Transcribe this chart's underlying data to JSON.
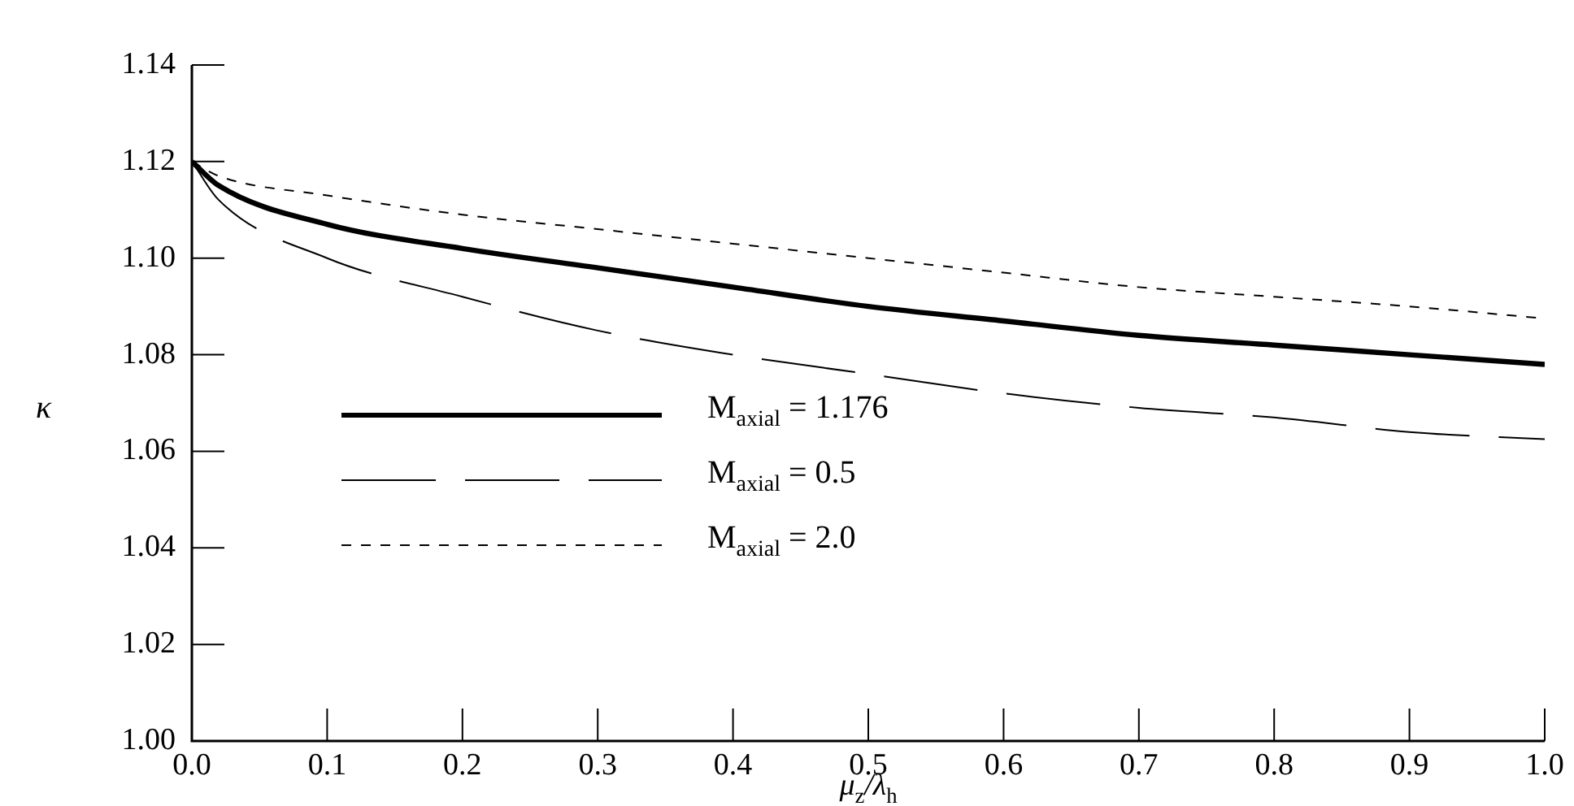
{
  "chart_data": {
    "type": "line",
    "xlabel": "μ$_{z}$/λ$_{h}$",
    "ylabel": "κ",
    "x": [
      0,
      0.02,
      0.1,
      0.2,
      0.3,
      0.4,
      0.5,
      0.6,
      0.7,
      0.8,
      0.9,
      1.0
    ],
    "xlim": [
      0,
      1.0
    ],
    "xticks": [
      {
        "value": 0,
        "label": "0.0"
      },
      0.1,
      0.2,
      0.3,
      0.4,
      0.5,
      0.6,
      0.7,
      0.8,
      0.9,
      {
        "value": 1.0,
        "label": "1.0"
      }
    ],
    "ylim": [
      1.0,
      1.14
    ],
    "yticks": [
      {
        "value": 1.0,
        "label": "1.00"
      },
      1.02,
      1.04,
      1.06,
      1.08,
      {
        "value": 1.1,
        "label": "1.10"
      },
      1.12,
      1.14
    ],
    "grid": false,
    "legend": "bottom left",
    "marker": "none",
    "series": [
      {
        "name": "M$_{axial}$ = 1.176",
        "color": "#000000",
        "line_style": "solid",
        "values": [
          1.12,
          1.115,
          1.107,
          1.102,
          1.098,
          1.094,
          1.09,
          1.087,
          1.084,
          1.082,
          1.08,
          1.078
        ]
      },
      {
        "name": "M$_{axial}$ = 0.5",
        "color": "#000000",
        "line_style": "dashed",
        "values": [
          1.12,
          1.112,
          1.1,
          1.092,
          1.085,
          1.08,
          1.076,
          1.072,
          1.069,
          1.067,
          1.064,
          1.0625
        ]
      },
      {
        "name": "M$_{axial}$ = 2.0",
        "color": "#000000",
        "line_style": "dotted",
        "values": [
          1.12,
          1.117,
          1.113,
          1.109,
          1.106,
          1.103,
          1.1,
          1.097,
          1.094,
          1.092,
          1.09,
          1.0875
        ]
      }
    ]
  }
}
